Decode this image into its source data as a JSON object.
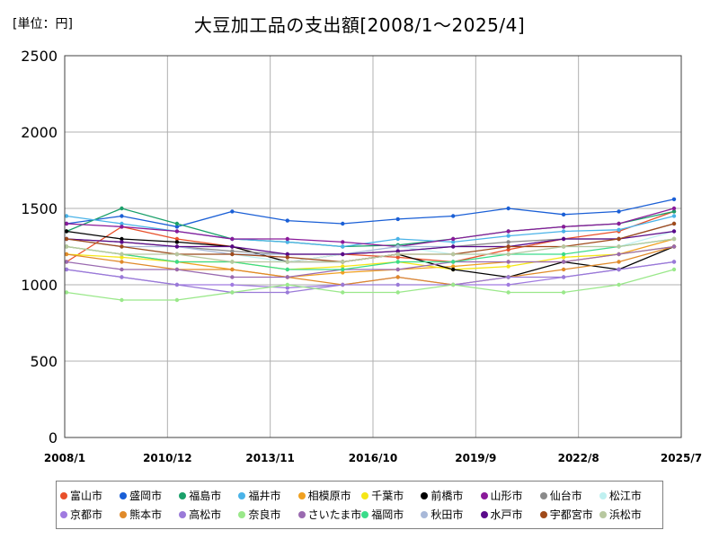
{
  "unit_label": "[単位：円]",
  "chart_data": {
    "type": "line",
    "title": "大豆加工品の支出額[2008/1～2025/4]",
    "xlabel": "",
    "ylabel": "",
    "ylim": [
      0,
      2500
    ],
    "xlim": [
      "2008/1",
      "2025/7"
    ],
    "y_ticks": [
      0,
      500,
      1000,
      1500,
      2000,
      2500
    ],
    "x_ticks": [
      "2008/1",
      "2010/12",
      "2013/11",
      "2016/10",
      "2019/9",
      "2022/8",
      "2025/7"
    ],
    "grid": true,
    "legend_position": "bottom",
    "series": [
      {
        "name": "富山市",
        "color": "#e8502a",
        "values": [
          1150,
          1380,
          1300,
          1250,
          1150,
          1200,
          1180,
          1150,
          1230,
          1300,
          1350,
          1480
        ]
      },
      {
        "name": "盛岡市",
        "color": "#1a5fd6",
        "values": [
          1400,
          1450,
          1380,
          1480,
          1420,
          1400,
          1430,
          1450,
          1500,
          1460,
          1480,
          1560
        ]
      },
      {
        "name": "福島市",
        "color": "#1aa06a",
        "values": [
          1350,
          1500,
          1400,
          1300,
          1280,
          1250,
          1260,
          1300,
          1350,
          1380,
          1400,
          1480
        ]
      },
      {
        "name": "福井市",
        "color": "#4ab3e8",
        "values": [
          1450,
          1400,
          1350,
          1300,
          1280,
          1250,
          1300,
          1280,
          1320,
          1350,
          1360,
          1450
        ]
      },
      {
        "name": "相模原市",
        "color": "#f0a020",
        "values": [
          1250,
          1200,
          1150,
          1100,
          1050,
          1080,
          1100,
          1120,
          1150,
          1150,
          1200,
          1300
        ]
      },
      {
        "name": "千葉市",
        "color": "#f5e616",
        "values": [
          1200,
          1180,
          1150,
          1150,
          1100,
          1120,
          1150,
          1100,
          1120,
          1180,
          1200,
          1250
        ]
      },
      {
        "name": "前橋市",
        "color": "#000000",
        "values": [
          1350,
          1300,
          1280,
          1250,
          1150,
          1150,
          1200,
          1100,
          1050,
          1150,
          1100,
          1250
        ]
      },
      {
        "name": "山形市",
        "color": "#8a1a9a",
        "values": [
          1400,
          1380,
          1350,
          1300,
          1300,
          1280,
          1250,
          1300,
          1350,
          1380,
          1400,
          1500
        ]
      },
      {
        "name": "仙台市",
        "color": "#8a8a8a",
        "values": [
          1300,
          1280,
          1250,
          1220,
          1200,
          1200,
          1220,
          1250,
          1280,
          1300,
          1300,
          1400
        ]
      },
      {
        "name": "松江市",
        "color": "#bff0f0",
        "values": [
          1300,
          1250,
          1200,
          1200,
          1150,
          1200,
          1250,
          1200,
          1200,
          1250,
          1250,
          1350
        ]
      },
      {
        "name": "京都市",
        "color": "#a07ae0",
        "values": [
          1100,
          1050,
          1000,
          1000,
          980,
          1000,
          1050,
          1000,
          1000,
          1050,
          1100,
          1150
        ]
      },
      {
        "name": "熊本市",
        "color": "#e08a2a",
        "values": [
          1200,
          1150,
          1100,
          1100,
          1050,
          1000,
          1050,
          1000,
          1050,
          1100,
          1150,
          1250
        ]
      },
      {
        "name": "高松市",
        "color": "#9a7ad8",
        "values": [
          1100,
          1050,
          1000,
          950,
          950,
          1000,
          1000,
          1000,
          1050,
          1050,
          1100,
          1150
        ]
      },
      {
        "name": "奈良市",
        "color": "#9ae88a",
        "values": [
          950,
          900,
          900,
          950,
          1000,
          950,
          950,
          1000,
          950,
          950,
          1000,
          1100
        ]
      },
      {
        "name": "さいたま市",
        "color": "#9a6ab0",
        "values": [
          1150,
          1100,
          1100,
          1050,
          1050,
          1100,
          1100,
          1150,
          1150,
          1150,
          1200,
          1250
        ]
      },
      {
        "name": "福岡市",
        "color": "#3adc8a",
        "values": [
          1250,
          1200,
          1150,
          1150,
          1100,
          1100,
          1150,
          1150,
          1200,
          1200,
          1250,
          1300
        ]
      },
      {
        "name": "秋田市",
        "color": "#a8b8d8",
        "values": [
          1300,
          1250,
          1250,
          1200,
          1200,
          1200,
          1250,
          1250,
          1250,
          1300,
          1300,
          1400
        ]
      },
      {
        "name": "水戸市",
        "color": "#5a0a8a",
        "values": [
          1300,
          1280,
          1250,
          1250,
          1200,
          1200,
          1220,
          1250,
          1250,
          1300,
          1300,
          1350
        ]
      },
      {
        "name": "宇都宮市",
        "color": "#a04a1a",
        "values": [
          1300,
          1250,
          1200,
          1200,
          1180,
          1150,
          1200,
          1200,
          1250,
          1250,
          1300,
          1400
        ]
      },
      {
        "name": "浜松市",
        "color": "#b8c8a0",
        "values": [
          1250,
          1200,
          1200,
          1150,
          1150,
          1150,
          1200,
          1200,
          1200,
          1250,
          1250,
          1300
        ]
      }
    ]
  }
}
